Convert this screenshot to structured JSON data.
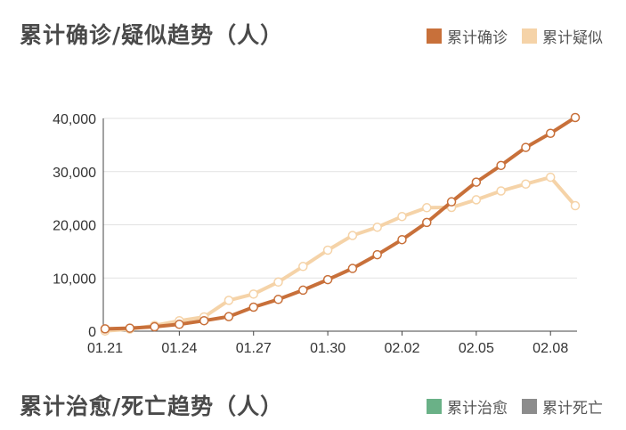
{
  "chart_data": {
    "type": "line",
    "title": "累计确诊/疑似趋势（人）",
    "legend_position": "top-right",
    "grid": true,
    "ylim": [
      0,
      40000
    ],
    "yticks": [
      "0",
      "10,000",
      "20,000",
      "30,000",
      "40,000"
    ],
    "ytick_values": [
      0,
      10000,
      20000,
      30000,
      40000
    ],
    "x": [
      "01.21",
      "01.22",
      "01.23",
      "01.24",
      "01.25",
      "01.26",
      "01.27",
      "01.28",
      "01.29",
      "01.30",
      "01.31",
      "02.01",
      "02.02",
      "02.03",
      "02.04",
      "02.05",
      "02.06",
      "02.07",
      "02.08",
      "02.09"
    ],
    "xtick_labels": [
      "01.21",
      "01.24",
      "01.27",
      "01.30",
      "02.02",
      "02.05",
      "02.08"
    ],
    "series": [
      {
        "name": "累计确诊",
        "color": "#c8703a",
        "values": [
          440,
          571,
          830,
          1287,
          1975,
          2744,
          4515,
          5974,
          7711,
          9692,
          11791,
          14380,
          17205,
          20438,
          24324,
          28018,
          31161,
          34546,
          37198,
          40171
        ]
      },
      {
        "name": "累计疑似",
        "color": "#f5d3a8",
        "values": [
          37,
          393,
          1072,
          1965,
          2684,
          5794,
          6973,
          9239,
          12167,
          15238,
          17988,
          19544,
          21558,
          23214,
          23260,
          24702,
          26359,
          27657,
          28942,
          23589
        ]
      }
    ]
  },
  "second_panel": {
    "title": "累计治愈/死亡趋势（人）",
    "legend": [
      {
        "name": "累计治愈",
        "color": "#6ab187"
      },
      {
        "name": "累计死亡",
        "color": "#8c8c8c"
      }
    ]
  }
}
